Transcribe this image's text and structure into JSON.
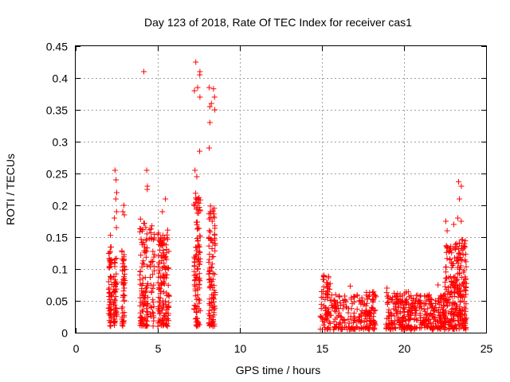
{
  "chart_data": {
    "type": "scatter",
    "title": "Day 123 of 2018, Rate Of TEC Index for receiver cas1",
    "xlabel": "GPS time / hours",
    "ylabel": "ROTI / TECUs",
    "xlim": [
      0,
      25
    ],
    "ylim": [
      0,
      0.45
    ],
    "grid": true,
    "marker": "+",
    "color": "#ff0000",
    "x_ticks": [
      "0",
      "5",
      "10",
      "15",
      "20",
      "25"
    ],
    "y_ticks": [
      "0",
      "0.05",
      "0.1",
      "0.15",
      "0.2",
      "0.25",
      "0.3",
      "0.35",
      "0.4",
      "0.45"
    ],
    "clusters": [
      {
        "x": [
          2.0,
          2.2
        ],
        "count": 60,
        "y_range": [
          0.01,
          0.135
        ],
        "extra_y": [
          0.153
        ]
      },
      {
        "x": [
          2.3,
          2.5
        ],
        "count": 50,
        "y_range": [
          0.01,
          0.12
        ],
        "extra_y": [
          0.165,
          0.18,
          0.19,
          0.21,
          0.22,
          0.24,
          0.255
        ]
      },
      {
        "x": [
          2.8,
          3.0
        ],
        "count": 50,
        "y_range": [
          0.01,
          0.13
        ],
        "extra_y": [
          0.185,
          0.19,
          0.2
        ]
      },
      {
        "x": [
          3.9,
          4.2
        ],
        "count": 60,
        "y_range": [
          0.01,
          0.18
        ],
        "extra_y": [
          0.41
        ]
      },
      {
        "x": [
          4.2,
          4.4
        ],
        "count": 40,
        "y_range": [
          0.01,
          0.17
        ],
        "extra_y": [
          0.225,
          0.23,
          0.255
        ]
      },
      {
        "x": [
          4.5,
          4.8
        ],
        "count": 40,
        "y_range": [
          0.01,
          0.17
        ],
        "extra_y": []
      },
      {
        "x": [
          5.0,
          5.3
        ],
        "count": 60,
        "y_range": [
          0.01,
          0.16
        ],
        "extra_y": [
          0.19
        ]
      },
      {
        "x": [
          5.3,
          5.7
        ],
        "count": 80,
        "y_range": [
          0.01,
          0.17
        ],
        "extra_y": [
          0.21
        ]
      },
      {
        "x": [
          7.2,
          7.6
        ],
        "count": 110,
        "y_range": [
          0.01,
          0.22
        ],
        "extra_y": [
          0.245,
          0.255,
          0.285,
          0.37,
          0.38,
          0.385,
          0.405,
          0.41,
          0.425
        ]
      },
      {
        "x": [
          8.1,
          8.5
        ],
        "count": 110,
        "y_range": [
          0.01,
          0.2
        ],
        "extra_y": [
          0.29,
          0.33,
          0.35,
          0.355,
          0.36,
          0.37,
          0.383,
          0.385
        ]
      },
      {
        "x": [
          14.9,
          15.5
        ],
        "count": 70,
        "y_range": [
          0.005,
          0.1
        ],
        "extra_y": []
      },
      {
        "x": [
          15.5,
          17.5
        ],
        "count": 130,
        "y_range": [
          0.005,
          0.06
        ],
        "extra_y": [
          0.073
        ]
      },
      {
        "x": [
          17.5,
          18.3
        ],
        "count": 80,
        "y_range": [
          0.005,
          0.065
        ],
        "extra_y": []
      },
      {
        "x": [
          18.9,
          20.5
        ],
        "count": 170,
        "y_range": [
          0.005,
          0.065
        ],
        "extra_y": [
          0.07
        ]
      },
      {
        "x": [
          20.5,
          22.5
        ],
        "count": 190,
        "y_range": [
          0.005,
          0.06
        ],
        "extra_y": [
          0.075
        ]
      },
      {
        "x": [
          22.5,
          23.3
        ],
        "count": 150,
        "y_range": [
          0.005,
          0.14
        ],
        "extra_y": [
          0.16,
          0.17,
          0.175,
          0.18
        ]
      },
      {
        "x": [
          23.3,
          23.8
        ],
        "count": 120,
        "y_range": [
          0.005,
          0.15
        ],
        "extra_y": [
          0.175,
          0.21,
          0.23,
          0.237
        ]
      }
    ]
  }
}
